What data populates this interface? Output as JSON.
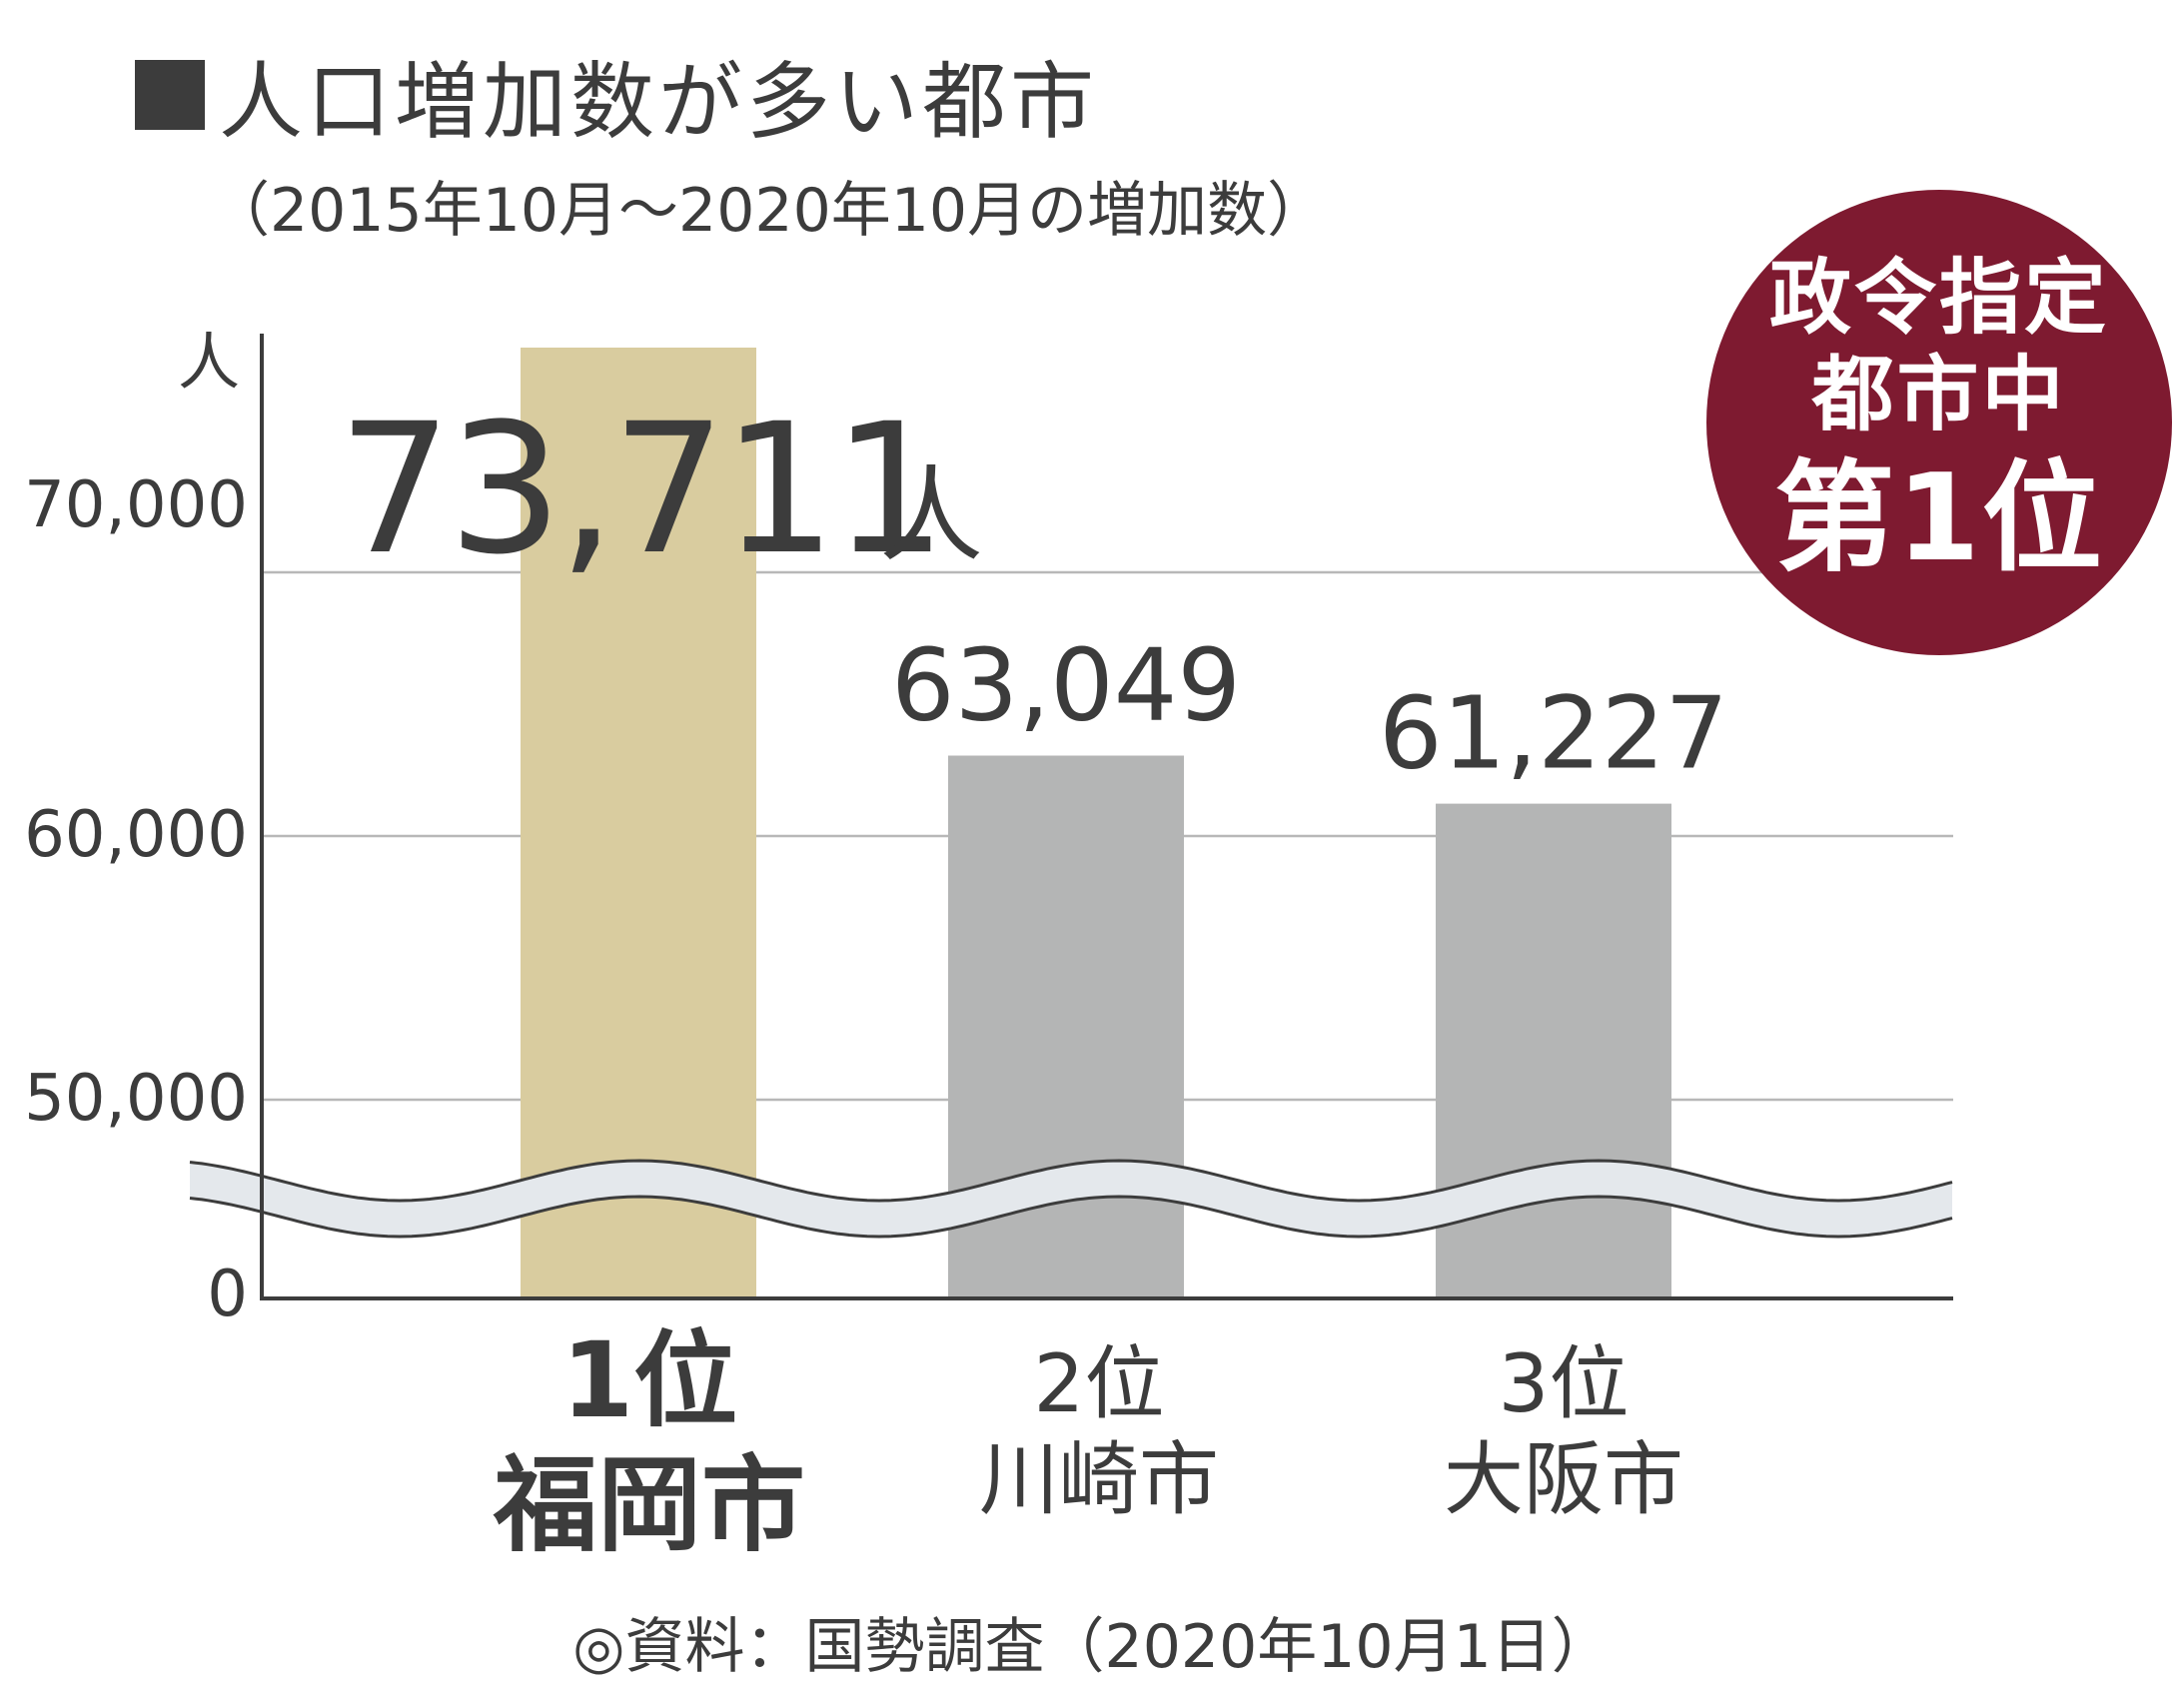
{
  "header": {
    "title": "人口増加数が多い都市",
    "subtitle": "（2015年10月～2020年10月の増加数）"
  },
  "badge": {
    "line1": "政令指定",
    "line2": "都市中",
    "line3": "第1位"
  },
  "source": "◎資料：国勢調査（2020年10月1日）",
  "colors": {
    "highlight_bar": "#d9cc9f",
    "other_bar": "#b4b5b5",
    "badge": "#7e1a30",
    "text": "#3c3c3c"
  },
  "chart_data": {
    "type": "bar",
    "title": "人口増加数が多い都市",
    "subtitle": "（2015年10月～2020年10月の増加数）",
    "y_unit": "人",
    "y_ticks": [
      "0",
      "50,000",
      "60,000",
      "70,000"
    ],
    "y_axis_break": true,
    "grid": true,
    "categories": [
      {
        "rank": "1位",
        "city": "福岡市"
      },
      {
        "rank": "2位",
        "city": "川崎市"
      },
      {
        "rank": "3位",
        "city": "大阪市"
      }
    ],
    "values": [
      73711,
      63049,
      61227
    ],
    "value_labels": [
      "73,711",
      "63,049",
      "61,227"
    ],
    "highlight_unit": "人",
    "ylim": [
      0,
      75000
    ]
  }
}
